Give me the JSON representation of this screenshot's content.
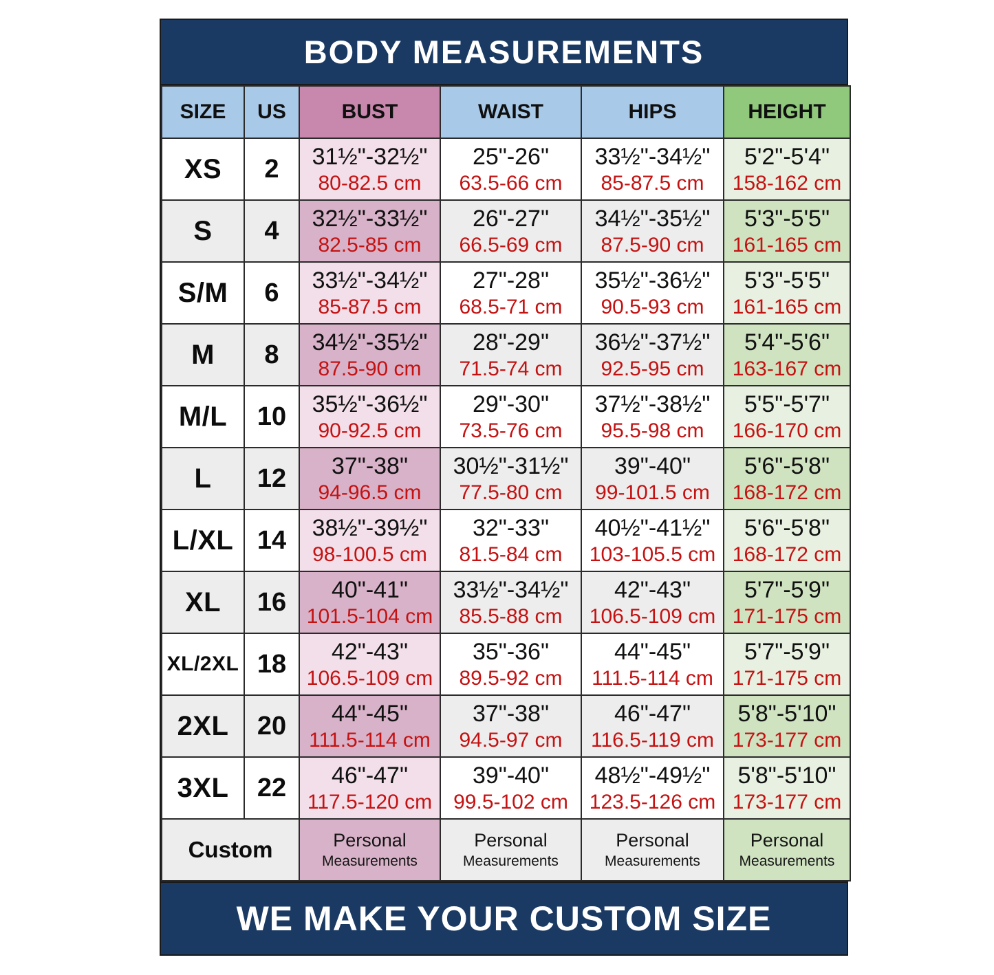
{
  "title": "BODY MEASUREMENTS",
  "footer": "WE MAKE YOUR CUSTOM SIZE",
  "columns": {
    "size": "SIZE",
    "us": "US",
    "bust": "BUST",
    "waist": "WAIST",
    "hips": "HIPS",
    "height": "HEIGHT"
  },
  "rows": [
    {
      "size": "XS",
      "us": "2",
      "bust_in": "31½\"-32½\"",
      "bust_cm": "80-82.5 cm",
      "waist_in": "25\"-26\"",
      "waist_cm": "63.5-66 cm",
      "hips_in": "33½\"-34½\"",
      "hips_cm": "85-87.5 cm",
      "height_in": "5'2\"-5'4\"",
      "height_cm": "158-162 cm"
    },
    {
      "size": "S",
      "us": "4",
      "bust_in": "32½\"-33½\"",
      "bust_cm": "82.5-85 cm",
      "waist_in": "26\"-27\"",
      "waist_cm": "66.5-69 cm",
      "hips_in": "34½\"-35½\"",
      "hips_cm": "87.5-90 cm",
      "height_in": "5'3\"-5'5\"",
      "height_cm": "161-165 cm"
    },
    {
      "size": "S/M",
      "us": "6",
      "bust_in": "33½\"-34½\"",
      "bust_cm": "85-87.5 cm",
      "waist_in": "27\"-28\"",
      "waist_cm": "68.5-71 cm",
      "hips_in": "35½\"-36½\"",
      "hips_cm": "90.5-93 cm",
      "height_in": "5'3\"-5'5\"",
      "height_cm": "161-165 cm"
    },
    {
      "size": "M",
      "us": "8",
      "bust_in": "34½\"-35½\"",
      "bust_cm": "87.5-90 cm",
      "waist_in": "28\"-29\"",
      "waist_cm": "71.5-74 cm",
      "hips_in": "36½\"-37½\"",
      "hips_cm": "92.5-95 cm",
      "height_in": "5'4\"-5'6\"",
      "height_cm": "163-167 cm"
    },
    {
      "size": "M/L",
      "us": "10",
      "bust_in": "35½\"-36½\"",
      "bust_cm": "90-92.5 cm",
      "waist_in": "29\"-30\"",
      "waist_cm": "73.5-76 cm",
      "hips_in": "37½\"-38½\"",
      "hips_cm": "95.5-98 cm",
      "height_in": "5'5\"-5'7\"",
      "height_cm": "166-170 cm"
    },
    {
      "size": "L",
      "us": "12",
      "bust_in": "37\"-38\"",
      "bust_cm": "94-96.5 cm",
      "waist_in": "30½\"-31½\"",
      "waist_cm": "77.5-80 cm",
      "hips_in": "39\"-40\"",
      "hips_cm": "99-101.5 cm",
      "height_in": "5'6\"-5'8\"",
      "height_cm": "168-172 cm"
    },
    {
      "size": "L/XL",
      "us": "14",
      "bust_in": "38½\"-39½\"",
      "bust_cm": "98-100.5 cm",
      "waist_in": "32\"-33\"",
      "waist_cm": "81.5-84 cm",
      "hips_in": "40½\"-41½\"",
      "hips_cm": "103-105.5 cm",
      "height_in": "5'6\"-5'8\"",
      "height_cm": "168-172 cm"
    },
    {
      "size": "XL",
      "us": "16",
      "bust_in": "40\"-41\"",
      "bust_cm": "101.5-104 cm",
      "waist_in": "33½\"-34½\"",
      "waist_cm": "85.5-88 cm",
      "hips_in": "42\"-43\"",
      "hips_cm": "106.5-109 cm",
      "height_in": "5'7\"-5'9\"",
      "height_cm": "171-175 cm"
    },
    {
      "size": "XL/2XL",
      "us": "18",
      "bust_in": "42\"-43\"",
      "bust_cm": "106.5-109 cm",
      "waist_in": "35\"-36\"",
      "waist_cm": "89.5-92 cm",
      "hips_in": "44\"-45\"",
      "hips_cm": "111.5-114 cm",
      "height_in": "5'7\"-5'9\"",
      "height_cm": "171-175 cm"
    },
    {
      "size": "2XL",
      "us": "20",
      "bust_in": "44\"-45\"",
      "bust_cm": "111.5-114 cm",
      "waist_in": "37\"-38\"",
      "waist_cm": "94.5-97 cm",
      "hips_in": "46\"-47\"",
      "hips_cm": "116.5-119 cm",
      "height_in": "5'8\"-5'10\"",
      "height_cm": "173-177 cm"
    },
    {
      "size": "3XL",
      "us": "22",
      "bust_in": "46\"-47\"",
      "bust_cm": "117.5-120 cm",
      "waist_in": "39\"-40\"",
      "waist_cm": "99.5-102 cm",
      "hips_in": "48½\"-49½\"",
      "hips_cm": "123.5-126 cm",
      "height_in": "5'8\"-5'10\"",
      "height_cm": "173-177 cm"
    }
  ],
  "custom_row": {
    "label": "Custom",
    "personal": "Personal",
    "measurements": "Measurements"
  },
  "colors": {
    "navy": "#1b3a63",
    "header_blue": "#a9c9e9",
    "header_pink": "#c887ac",
    "header_green": "#90c87c",
    "bust_light": "#f2dfe9",
    "bust_dark": "#d8b2c8",
    "height_light": "#e8f1e1",
    "height_dark": "#cfe3c1",
    "row_gray": "#ededed",
    "row_white": "#ffffff",
    "cm_red": "#c41212"
  }
}
